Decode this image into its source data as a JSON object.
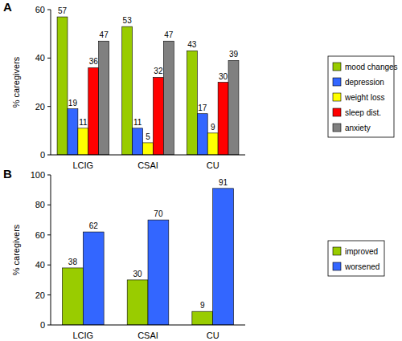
{
  "chart_data": [
    {
      "type": "bar",
      "title": "A",
      "y_label": "% caregivers",
      "categories": [
        "LCIG",
        "CSAI",
        "CU"
      ],
      "series": [
        {
          "name": "mood changes",
          "color": "#99cc00",
          "values": [
            57,
            53,
            43
          ]
        },
        {
          "name": "depression",
          "color": "#3366ff",
          "values": [
            19,
            11,
            17
          ]
        },
        {
          "name": "weight loss",
          "color": "#ffff00",
          "values": [
            11,
            5,
            9
          ]
        },
        {
          "name": "sleep dist.",
          "color": "#ff0000",
          "values": [
            36,
            32,
            30
          ]
        },
        {
          "name": "anxiety",
          "color": "#808080",
          "values": [
            47,
            47,
            39
          ]
        }
      ],
      "ylim": [
        0,
        60
      ],
      "yticks": [
        0,
        20,
        40,
        60
      ],
      "grid": false,
      "legend": "right",
      "data_labels": true
    },
    {
      "type": "bar",
      "title": "B",
      "y_label": "% caregivers",
      "categories": [
        "LCIG",
        "CSAI",
        "CU"
      ],
      "series": [
        {
          "name": "improved",
          "color": "#99cc00",
          "values": [
            38,
            30,
            9
          ]
        },
        {
          "name": "worsened",
          "color": "#3366ff",
          "values": [
            62,
            70,
            91
          ]
        }
      ],
      "ylim": [
        0,
        100
      ],
      "yticks": [
        0,
        20,
        40,
        60,
        80,
        100
      ],
      "grid": false,
      "legend": "right",
      "data_labels": true
    }
  ]
}
